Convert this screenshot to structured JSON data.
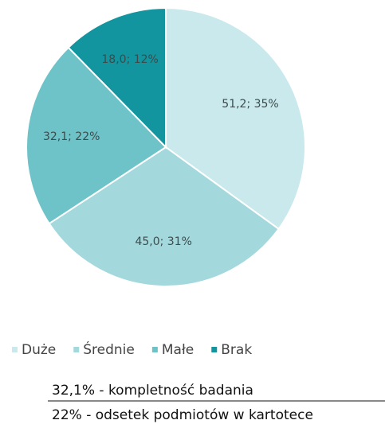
{
  "chart_data": {
    "type": "pie",
    "categories": [
      "Duże",
      "Średnie",
      "Małe",
      "Brak"
    ],
    "values": [
      51.2,
      45.0,
      32.1,
      18.0
    ],
    "value_labels": [
      "51,2; 35%",
      "45,0; 31%",
      "32,1; 22%",
      "18,0; 12%"
    ],
    "colors": [
      "#c9e9ed",
      "#a3d8dd",
      "#6ec3c8",
      "#12959e"
    ],
    "legend": "bottom",
    "annotations": [
      "32,1% - kompletność badania",
      "22% - odsetek podmiotów w kartotece"
    ]
  }
}
